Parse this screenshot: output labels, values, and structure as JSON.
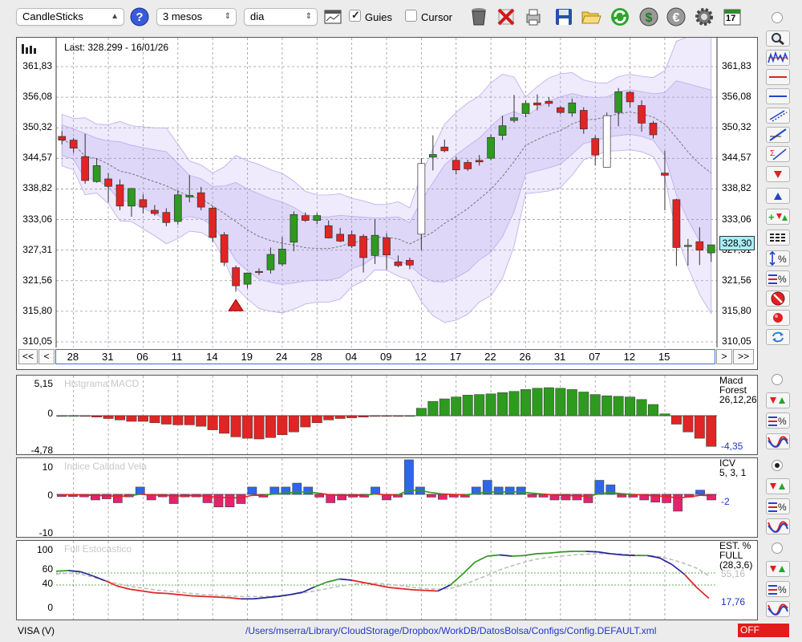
{
  "toolbar": {
    "chart_type": "CandleSticks",
    "period": "3 mesos",
    "interval": "dia",
    "guides_label": "Guies",
    "cursor_label": "Cursor",
    "calendar_day": "17"
  },
  "main_chart": {
    "last_label": "Last: 328.299 - 16/01/26",
    "price_ticks": [
      "361,83",
      "356,08",
      "350,32",
      "344,57",
      "338,82",
      "333,06",
      "327,31",
      "321,56",
      "315,80",
      "310,05"
    ],
    "current_price": "328,30",
    "date_labels": [
      "28",
      "31",
      "06",
      "11",
      "14",
      "19",
      "24",
      "28",
      "04",
      "09",
      "12",
      "17",
      "22",
      "26",
      "31",
      "07",
      "12",
      "15"
    ],
    "nav": {
      "first": "<<",
      "prev": "<",
      "next": ">",
      "last": ">>"
    }
  },
  "macd": {
    "title": "Histgrama MACD",
    "y_max": "5,15",
    "y_zero": "0",
    "y_min": "-4,78",
    "name_line1": "Macd",
    "name_line2": "Forest",
    "params": "26,12,26",
    "value": "-4,35"
  },
  "icv": {
    "title": "Indice Calidad Vela",
    "y_max": "10",
    "y_zero": "0",
    "y_min": "-10",
    "name": "ICV",
    "params": "5, 3, 1",
    "value": "-2"
  },
  "stoch": {
    "title": "Full Estocastico",
    "ticks": [
      "100",
      "60",
      "40",
      "0"
    ],
    "name_line1": "EST. %",
    "name_line2": "FULL",
    "params": "(28,3,6)",
    "value_slow": "55,16",
    "value_fast": "17,76"
  },
  "status": {
    "symbol": "VISA (V)",
    "config_path": "/Users/mserra/Library/CloudStorage/Dropbox/WorkDB/DatosBolsa/Configs/Config.DEFAULT.xml",
    "off_label": "OFF"
  },
  "chart_data": {
    "type": "candlestick",
    "ylim": [
      310.05,
      361.83
    ],
    "candles": [
      {
        "o": 348.7,
        "h": 349.7,
        "l": 347.2,
        "c": 348.0
      },
      {
        "o": 348.0,
        "h": 348.4,
        "l": 345.6,
        "c": 346.5
      },
      {
        "o": 344.9,
        "h": 349.2,
        "l": 339.8,
        "c": 340.4
      },
      {
        "o": 340.2,
        "h": 344.6,
        "l": 340.0,
        "c": 343.2
      },
      {
        "o": 340.7,
        "h": 341.8,
        "l": 336.3,
        "c": 339.3
      },
      {
        "o": 339.6,
        "h": 340.6,
        "l": 334.8,
        "c": 335.6
      },
      {
        "o": 335.6,
        "h": 339.0,
        "l": 333.6,
        "c": 338.9
      },
      {
        "o": 336.8,
        "h": 337.8,
        "l": 334.2,
        "c": 335.4
      },
      {
        "o": 334.8,
        "h": 335.8,
        "l": 333.8,
        "c": 334.2
      },
      {
        "o": 334.4,
        "h": 335.2,
        "l": 331.8,
        "c": 332.5
      },
      {
        "o": 332.7,
        "h": 338.6,
        "l": 332.1,
        "c": 337.7
      },
      {
        "o": 337.3,
        "h": 341.4,
        "l": 336.3,
        "c": 337.6
      },
      {
        "o": 338.1,
        "h": 339.2,
        "l": 334.8,
        "c": 335.4
      },
      {
        "o": 335.2,
        "h": 335.6,
        "l": 328.8,
        "c": 329.7
      },
      {
        "o": 330.2,
        "h": 330.7,
        "l": 324.3,
        "c": 325.0
      },
      {
        "o": 324.0,
        "h": 324.4,
        "l": 319.5,
        "c": 320.6
      },
      {
        "o": 320.9,
        "h": 323.1,
        "l": 320.1,
        "c": 323.0
      },
      {
        "o": 323.3,
        "h": 323.9,
        "l": 322.6,
        "c": 323.1
      },
      {
        "o": 323.6,
        "h": 327.8,
        "l": 322.9,
        "c": 326.5
      },
      {
        "o": 324.7,
        "h": 329.8,
        "l": 324.3,
        "c": 327.5
      },
      {
        "o": 328.8,
        "h": 334.6,
        "l": 327.1,
        "c": 334.0
      },
      {
        "o": 333.8,
        "h": 334.4,
        "l": 332.6,
        "c": 332.9
      },
      {
        "o": 332.9,
        "h": 334.3,
        "l": 332.2,
        "c": 333.8
      },
      {
        "o": 331.9,
        "h": 332.9,
        "l": 329.5,
        "c": 329.6
      },
      {
        "o": 330.3,
        "h": 331.5,
        "l": 328.8,
        "c": 329.0
      },
      {
        "o": 330.2,
        "h": 331.0,
        "l": 327.7,
        "c": 328.1
      },
      {
        "o": 329.9,
        "h": 330.3,
        "l": 323.1,
        "c": 325.9
      },
      {
        "o": 326.3,
        "h": 333.1,
        "l": 324.7,
        "c": 330.1
      },
      {
        "o": 329.6,
        "h": 330.5,
        "l": 323.7,
        "c": 326.4
      },
      {
        "o": 325.1,
        "h": 326.3,
        "l": 324.1,
        "c": 324.4
      },
      {
        "o": 325.4,
        "h": 325.9,
        "l": 323.7,
        "c": 324.5
      },
      {
        "o": 330.3,
        "h": 344.6,
        "l": 327.3,
        "c": 343.6
      },
      {
        "o": 344.8,
        "h": 348.9,
        "l": 342.3,
        "c": 345.3
      },
      {
        "o": 346.7,
        "h": 348.1,
        "l": 345.7,
        "c": 346.0
      },
      {
        "o": 344.2,
        "h": 344.9,
        "l": 341.6,
        "c": 342.4
      },
      {
        "o": 343.8,
        "h": 344.3,
        "l": 342.2,
        "c": 342.6
      },
      {
        "o": 344.2,
        "h": 345.2,
        "l": 343.2,
        "c": 343.9
      },
      {
        "o": 344.6,
        "h": 349.1,
        "l": 344.2,
        "c": 348.5
      },
      {
        "o": 348.9,
        "h": 352.6,
        "l": 348.0,
        "c": 350.7
      },
      {
        "o": 351.7,
        "h": 356.5,
        "l": 351.3,
        "c": 352.2
      },
      {
        "o": 353.0,
        "h": 355.5,
        "l": 352.3,
        "c": 354.9
      },
      {
        "o": 355.0,
        "h": 356.6,
        "l": 353.6,
        "c": 354.6
      },
      {
        "o": 355.3,
        "h": 356.1,
        "l": 354.3,
        "c": 354.9
      },
      {
        "o": 354.1,
        "h": 354.4,
        "l": 352.9,
        "c": 353.2
      },
      {
        "o": 353.1,
        "h": 355.8,
        "l": 352.4,
        "c": 355.0
      },
      {
        "o": 353.6,
        "h": 354.2,
        "l": 349.2,
        "c": 350.1
      },
      {
        "o": 348.3,
        "h": 348.9,
        "l": 343.2,
        "c": 345.2
      },
      {
        "o": 342.9,
        "h": 353.2,
        "l": 343.4,
        "c": 352.6
      },
      {
        "o": 353.2,
        "h": 357.8,
        "l": 350.6,
        "c": 357.1
      },
      {
        "o": 357.0,
        "h": 357.2,
        "l": 354.1,
        "c": 355.2
      },
      {
        "o": 354.5,
        "h": 355.5,
        "l": 349.6,
        "c": 351.2
      },
      {
        "o": 351.2,
        "h": 351.6,
        "l": 348.3,
        "c": 349.0
      },
      {
        "o": 341.8,
        "h": 346.0,
        "l": 334.8,
        "c": 341.4
      },
      {
        "o": 336.8,
        "h": 337.0,
        "l": 324.3,
        "c": 327.8
      },
      {
        "o": 328.0,
        "h": 329.4,
        "l": 324.4,
        "c": 328.2
      },
      {
        "o": 328.9,
        "h": 331.6,
        "l": 324.5,
        "c": 327.3
      },
      {
        "o": 326.8,
        "h": 328.2,
        "l": 325.1,
        "c": 328.3
      }
    ],
    "macd_hist": [
      0,
      0,
      -0.1,
      -0.2,
      -0.4,
      -0.6,
      -0.8,
      -0.8,
      -1.0,
      -1.2,
      -1.3,
      -1.3,
      -1.5,
      -2.0,
      -2.5,
      -3.0,
      -3.2,
      -3.3,
      -3.1,
      -2.7,
      -2.3,
      -1.6,
      -1.0,
      -0.6,
      -0.4,
      -0.3,
      -0.2,
      -0.1,
      -0.1,
      -0.1,
      0,
      1.2,
      2.3,
      2.7,
      3.0,
      3.3,
      3.4,
      3.5,
      3.7,
      3.9,
      4.2,
      4.4,
      4.5,
      4.4,
      4.2,
      3.8,
      3.4,
      3.2,
      3.1,
      3.0,
      2.6,
      1.8,
      0.3,
      -1.2,
      -2.3,
      -3.2,
      -4.35
    ],
    "icv_bars": [
      -0.8,
      -0.8,
      -0.9,
      -2.0,
      -1.6,
      -3.0,
      -0.9,
      2.6,
      -2.0,
      -0.9,
      -3.3,
      -0.9,
      -0.9,
      -3.0,
      -4.5,
      -4.5,
      -3.3,
      2.6,
      -1.0,
      2.6,
      2.6,
      4.0,
      2.6,
      -1.0,
      -3.0,
      -2.0,
      -1.0,
      -1.0,
      2.6,
      -2.0,
      -1.0,
      12.3,
      2.6,
      -1.0,
      -1.8,
      -1.0,
      -1.0,
      2.6,
      5.0,
      2.6,
      2.6,
      2.6,
      -1.0,
      -1.0,
      -2.0,
      -2.0,
      -2.0,
      -3.0,
      5.0,
      3.4,
      -1.0,
      -1.0,
      -2.0,
      -2.8,
      -3.0,
      -6.0,
      -1.0,
      1.5,
      -2.0
    ],
    "stoch_fast": [
      63,
      64,
      62,
      55,
      47,
      38,
      33,
      30,
      27,
      26,
      24,
      22,
      21,
      20,
      19,
      17,
      17,
      19,
      21,
      24,
      28,
      37,
      45,
      50,
      48,
      44,
      40,
      36,
      34,
      32,
      31,
      30,
      40,
      58,
      78,
      88,
      90,
      88,
      89,
      92,
      93,
      95,
      96,
      96,
      95,
      92,
      90,
      89,
      89,
      85,
      74,
      58,
      36,
      17.8
    ],
    "stoch_slow": [
      58,
      60,
      58,
      53,
      47,
      42,
      38,
      35,
      32,
      30,
      28,
      26,
      24,
      23,
      22,
      21,
      21,
      21,
      22,
      24,
      27,
      30,
      34,
      38,
      41,
      43,
      43,
      41,
      39,
      36,
      34,
      33,
      34,
      40,
      48,
      56,
      65,
      72,
      78,
      83,
      86,
      88,
      90,
      91,
      92,
      92,
      91,
      90,
      89,
      87,
      82,
      76,
      68,
      55.2
    ]
  }
}
